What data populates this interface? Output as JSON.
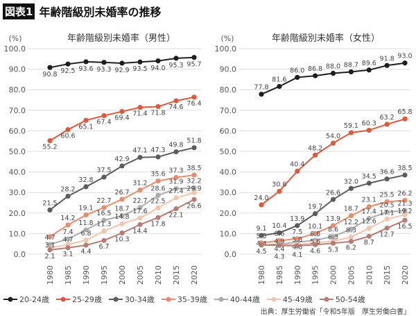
{
  "header": {
    "badge": "図表1",
    "title": "年齢階級別未婚率の推移"
  },
  "source": "出典：厚生労働省「令和5年版　厚生労働白書」",
  "series_colors": {
    "20-24歳": "#1e1e1e",
    "25-29歳": "#e0583a",
    "30-34歳": "#5c5c5c",
    "35-39歳": "#ea8c6c",
    "40-44歳": "#ababab",
    "45-49歳": "#f3c4ac",
    "50-54歳": "#b87b72"
  },
  "chart_data": [
    {
      "type": "line",
      "title": "年齢階級別未婚率（男性）",
      "ylabel": "(%)",
      "ylim": [
        0,
        100
      ],
      "yticks": [
        "0.0",
        "10.0",
        "20.0",
        "30.0",
        "40.0",
        "50.0",
        "60.0",
        "70.0",
        "80.0",
        "90.0",
        "100.0"
      ],
      "categories": [
        "1980",
        "1985",
        "1990",
        "1995",
        "2000",
        "2005",
        "2010",
        "2015",
        "2020"
      ],
      "grid": true,
      "legend": "bottom",
      "series": [
        {
          "name": "20-24歳",
          "values": [
            90.8,
            92.5,
            93.6,
            93.3,
            92.9,
            93.5,
            94.0,
            95.3,
            95.7
          ],
          "labels": [
            "90.8",
            "92.5",
            "93.6",
            "93.3",
            "92.9",
            "93.5",
            "94.0",
            "95.3",
            "95.7"
          ]
        },
        {
          "name": "25-29歳",
          "values": [
            55.2,
            60.6,
            65.1,
            67.4,
            69.4,
            71.4,
            71.8,
            74.6,
            76.4
          ],
          "labels": [
            "55.2",
            "60.6",
            "65.1",
            "67.4",
            "69.4",
            "71.4",
            "71.8",
            "74.6",
            "76.4"
          ]
        },
        {
          "name": "30-34歳",
          "values": [
            21.5,
            28.2,
            32.8,
            37.5,
            42.9,
            47.1,
            47.3,
            49.8,
            51.8
          ],
          "labels": [
            "21.5",
            "28.2",
            "32.8",
            "37.5",
            "42.9",
            "47.1",
            "47.3",
            "49.8",
            "51.8"
          ]
        },
        {
          "name": "35-39歳",
          "values": [
            8.5,
            14.2,
            19.1,
            22.7,
            26.7,
            31.2,
            35.6,
            37.3,
            38.5
          ],
          "labels": [
            null,
            "14.2",
            "19.1",
            "22.7",
            "26.7",
            "31.2",
            "35.6",
            "37.3",
            "38.5"
          ]
        },
        {
          "name": "40-44歳",
          "values": [
            4.7,
            7.4,
            11.8,
            16.5,
            18.7,
            22.7,
            28.6,
            31.9,
            32.2
          ],
          "labels": [
            "4.7",
            "7.4",
            "11.8",
            "16.5",
            "18.7",
            "22.7",
            "28.6",
            "31.9",
            "32.2"
          ]
        },
        {
          "name": "45-49歳",
          "values": [
            3.1,
            4.7,
            6.8,
            11.3,
            14.8,
            17.6,
            22.5,
            27.4,
            29.9
          ],
          "labels": [
            "3.1",
            "4.7",
            "6.8",
            "11.3",
            "14.8",
            "17.6",
            "22.5",
            "27.4",
            "29.9"
          ]
        },
        {
          "name": "50-54歳",
          "values": [
            2.1,
            3.1,
            4.4,
            6.7,
            10.3,
            14.4,
            17.8,
            22.1,
            26.6
          ],
          "labels": [
            "2.1",
            "3.1",
            "4.4",
            "6.7",
            "10.3",
            "14.4",
            "17.8",
            "22.1",
            "26.6"
          ]
        }
      ]
    },
    {
      "type": "line",
      "title": "年齢階級別未婚率（女性）",
      "ylabel": "(%)",
      "ylim": [
        0,
        100
      ],
      "yticks": [
        "0.0",
        "10.0",
        "20.0",
        "30.0",
        "40.0",
        "50.0",
        "60.0",
        "70.0",
        "80.0",
        "90.0",
        "100.0"
      ],
      "categories": [
        "1980",
        "1985",
        "1990",
        "1995",
        "2000",
        "2005",
        "2010",
        "2015",
        "2020"
      ],
      "grid": true,
      "legend": "bottom",
      "series": [
        {
          "name": "20-24歳",
          "values": [
            77.8,
            81.6,
            86.0,
            86.8,
            88.0,
            88.7,
            89.6,
            91.8,
            93.0
          ],
          "labels": [
            "77.8",
            "81.6",
            "86.0",
            "86.8",
            "88.0",
            "88.7",
            "89.6",
            "91.8",
            "93.0"
          ]
        },
        {
          "name": "25-29歳",
          "values": [
            24.0,
            30.6,
            40.4,
            48.2,
            54.0,
            59.1,
            60.3,
            63.2,
            65.8
          ],
          "labels": [
            "24.0",
            "30.6",
            "40.4",
            "48.2",
            "54.0",
            "59.1",
            "60.3",
            "63.2",
            "65.8"
          ]
        },
        {
          "name": "30-34歳",
          "values": [
            9.1,
            10.4,
            13.9,
            19.7,
            26.6,
            32.0,
            34.5,
            36.6,
            38.5
          ],
          "labels": [
            "9.1",
            "10.4",
            "13.9",
            "19.7",
            "26.6",
            "32.0",
            "34.5",
            "36.6",
            "38.5"
          ]
        },
        {
          "name": "35-39歳",
          "values": [
            5.5,
            6.6,
            7.5,
            10.1,
            13.9,
            18.7,
            23.1,
            25.5,
            26.2
          ],
          "labels": [
            "5.5",
            "6.6",
            "7.5",
            "10.1",
            "13.9",
            "18.7",
            "23.1",
            "25.5",
            "26.2"
          ]
        },
        {
          "name": "40-44歳",
          "values": [
            4.4,
            4.9,
            5.8,
            6.8,
            8.6,
            12.2,
            17.4,
            20.5,
            21.3
          ],
          "labels": [
            "4.4",
            "4.9",
            "5.8",
            "6.8",
            "8.6",
            "12.2",
            "17.4",
            "20.5",
            "21.3"
          ]
        },
        {
          "name": "45-49歳",
          "values": [
            4.4,
            4.4,
            4.6,
            5.6,
            6.3,
            8.3,
            12.6,
            17.1,
            19.2
          ],
          "labels": [
            null,
            "4.4",
            "4.6",
            "5.6",
            "6.3",
            "8.3",
            "12.6",
            "17.1",
            "19.2"
          ]
        },
        {
          "name": "50-54歳",
          "values": [
            4.5,
            4.3,
            4.1,
            4.6,
            5.3,
            6.2,
            8.7,
            12.7,
            16.5
          ],
          "labels": [
            "4.5",
            "4.3",
            "4.1",
            "4.6",
            "5.3",
            "6.2",
            "8.7",
            "12.7",
            "16.5"
          ]
        }
      ]
    }
  ]
}
